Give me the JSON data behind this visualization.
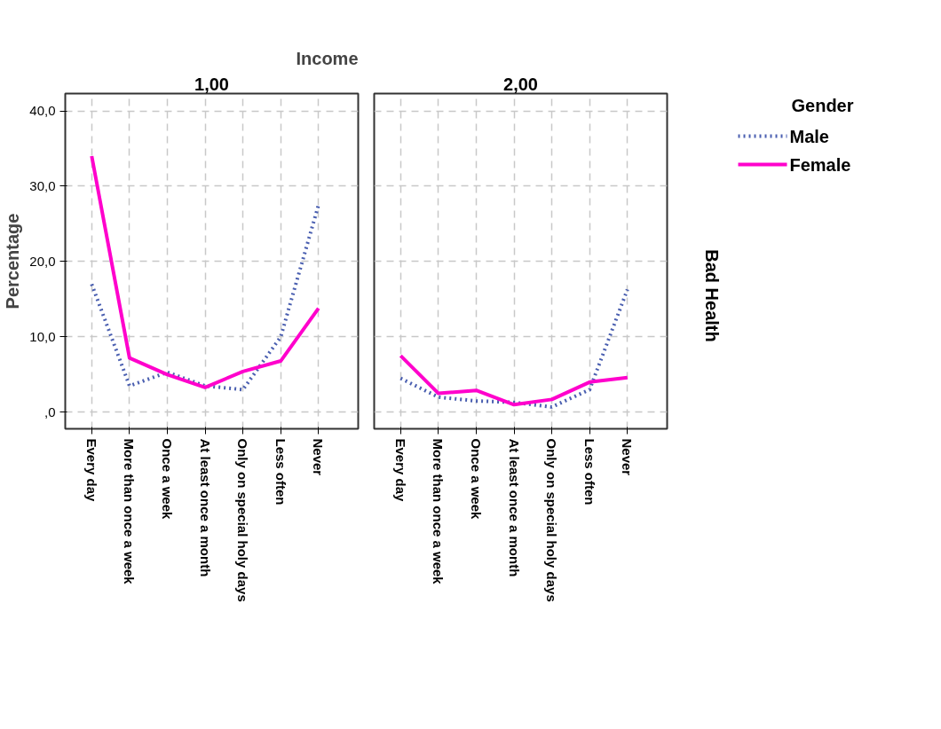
{
  "chart_data": [
    {
      "type": "line",
      "title": "1,00",
      "ylabel": "Percentage",
      "annotations": [
        "Income"
      ],
      "categories": [
        "Every day",
        "More than once a week",
        "Once a week",
        "At least once a month",
        "Only on special holy days",
        "Less often",
        "Never"
      ],
      "series": [
        {
          "color": "#4a5fb0",
          "line_style": "dotted",
          "values": [
            17.0,
            3.5,
            5.3,
            3.5,
            3.0,
            10.0,
            27.5
          ]
        },
        {
          "color": "#ff00cc",
          "line_style": "solid",
          "values": [
            34.0,
            7.2,
            5.0,
            3.3,
            5.4,
            6.8,
            13.8
          ]
        }
      ],
      "ylim": [
        -2.2,
        42.3
      ],
      "yticks": [
        {
          "value": 0,
          "label": ",0"
        },
        {
          "value": 10,
          "label": "10,0"
        },
        {
          "value": 20,
          "label": "20,0"
        },
        {
          "value": 30,
          "label": "30,0"
        },
        {
          "value": 40,
          "label": "40,0"
        }
      ],
      "grid": true
    },
    {
      "type": "line",
      "title": "2,00",
      "annotations": [
        "Bad Health"
      ],
      "legend_title": "Gender",
      "legend": "top right",
      "tick_labels": "x",
      "categories": [
        "Every day",
        "More than once a week",
        "Once a week",
        "At least once a month",
        "Only on special holy days",
        "Less often",
        "Never"
      ],
      "series": [
        {
          "name": "Male",
          "color": "#4a5fb0",
          "line_style": "dotted",
          "values": [
            4.5,
            2.0,
            1.5,
            1.3,
            0.7,
            3.0,
            16.3
          ]
        },
        {
          "name": "Female",
          "color": "#ff00cc",
          "line_style": "solid",
          "values": [
            7.5,
            2.5,
            2.9,
            1.0,
            1.7,
            4.0,
            4.6
          ]
        }
      ],
      "ylim": [
        -2.2,
        42.3
      ],
      "yticks": [
        0,
        10,
        20,
        30,
        40
      ],
      "grid": true
    }
  ]
}
